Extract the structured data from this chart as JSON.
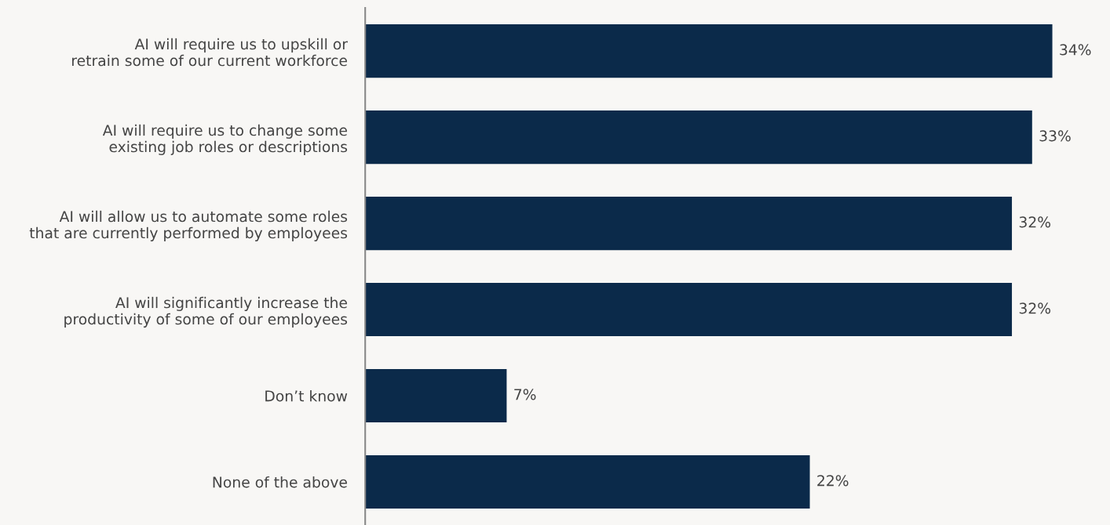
{
  "chart_data": {
    "type": "bar",
    "orientation": "horizontal",
    "categories": [
      "AI will require us to upskill or\nretrain some of our current workforce",
      "AI will require us to change some\nexisting job roles or descriptions",
      "AI will allow us to automate some roles\nthat are currently performed by employees",
      "AI will significantly increase the\nproductivity of some of our employees",
      "Don’t know",
      "None of the above"
    ],
    "values": [
      34,
      33,
      32,
      32,
      7,
      22
    ],
    "value_labels": [
      "34%",
      "33%",
      "32%",
      "32%",
      "7%",
      "22%"
    ],
    "color": "#0b2a4a",
    "grid": false,
    "legend": false,
    "tick_labels": "y"
  }
}
